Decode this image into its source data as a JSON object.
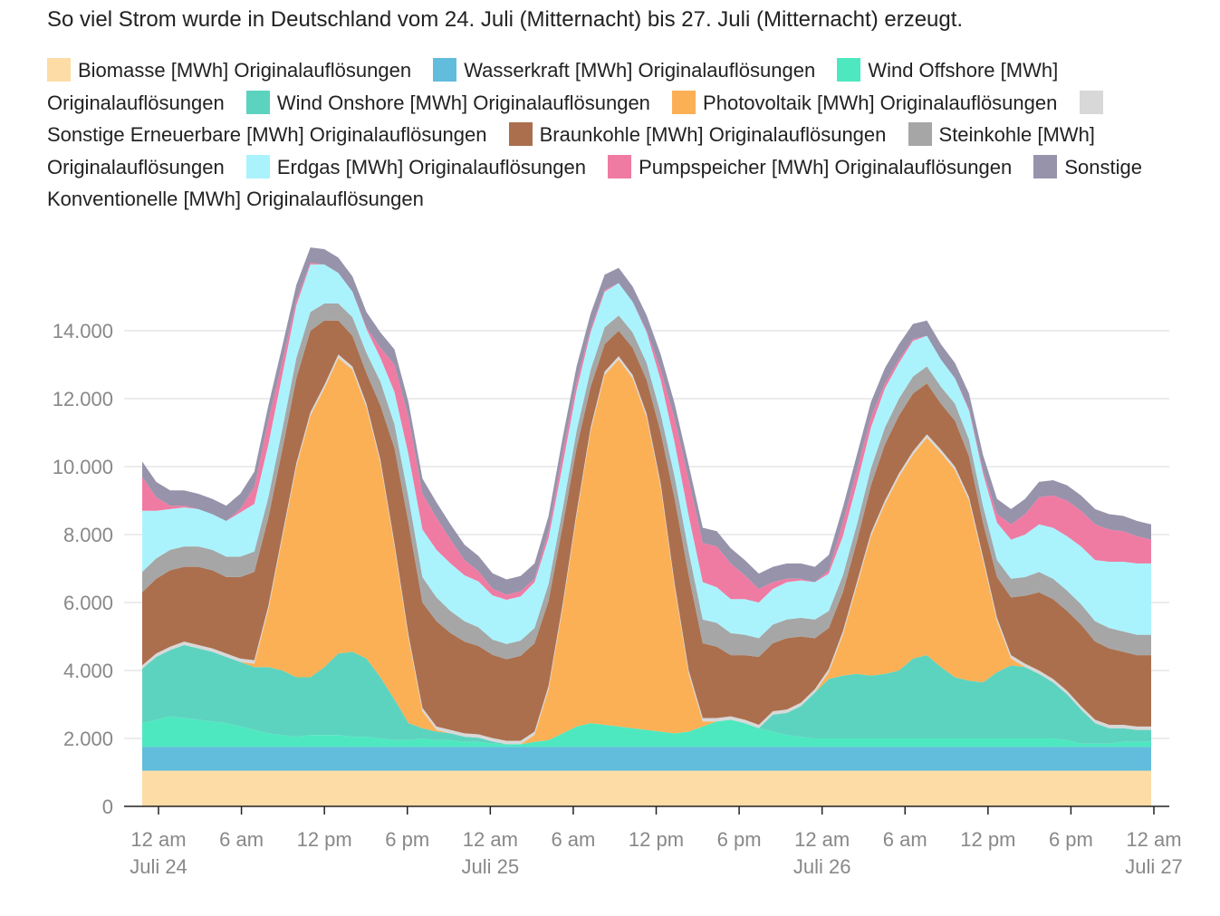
{
  "chart_data": {
    "type": "area",
    "stacked": true,
    "title": "So viel Strom wurde in Deutschland vom 24. Juli (Mitternacht) bis 27. Juli (Mitternacht) erzeugt.",
    "xlabel": "",
    "ylabel": "",
    "x_unit": "hours since Juli 24, 12 am",
    "x": [
      0,
      1,
      2,
      3,
      4,
      5,
      6,
      7,
      8,
      9,
      10,
      11,
      12,
      13,
      14,
      15,
      16,
      17,
      18,
      19,
      20,
      21,
      22,
      23,
      24,
      25,
      26,
      27,
      28,
      29,
      30,
      31,
      32,
      33,
      34,
      35,
      36,
      37,
      38,
      39,
      40,
      41,
      42,
      43,
      44,
      45,
      46,
      47,
      48,
      49,
      50,
      51,
      52,
      53,
      54,
      55,
      56,
      57,
      58,
      59,
      60,
      61,
      62,
      63,
      64,
      65,
      66,
      67,
      68,
      69,
      70,
      71,
      72
    ],
    "ylim": [
      0,
      16000
    ],
    "yticks": [
      0,
      2000,
      4000,
      6000,
      8000,
      10000,
      12000,
      14000
    ],
    "ytick_labels": [
      "0",
      "2.000",
      "4.000",
      "6.000",
      "8.000",
      "10.000",
      "12.000",
      "14.000"
    ],
    "xticks": [
      0,
      6,
      12,
      18,
      24,
      30,
      36,
      42,
      48,
      54,
      60,
      66,
      72
    ],
    "xtick_labels": [
      {
        "time": "12 am",
        "date": "Juli 24"
      },
      {
        "time": "6 am",
        "date": ""
      },
      {
        "time": "12 pm",
        "date": ""
      },
      {
        "time": "6 pm",
        "date": ""
      },
      {
        "time": "12 am",
        "date": "Juli 25"
      },
      {
        "time": "6 am",
        "date": ""
      },
      {
        "time": "12 pm",
        "date": ""
      },
      {
        "time": "6 pm",
        "date": ""
      },
      {
        "time": "12 am",
        "date": "Juli 26"
      },
      {
        "time": "6 am",
        "date": ""
      },
      {
        "time": "12 pm",
        "date": ""
      },
      {
        "time": "6 pm",
        "date": ""
      },
      {
        "time": "12 am",
        "date": "Juli 27"
      }
    ],
    "legend_position": "top",
    "series": [
      {
        "name": "Biomasse [MWh] Originalauflösungen",
        "color": "#fddca6",
        "values": [
          1050,
          1050,
          1050,
          1050,
          1050,
          1050,
          1050,
          1050,
          1050,
          1050,
          1050,
          1050,
          1050,
          1050,
          1050,
          1050,
          1050,
          1050,
          1050,
          1050,
          1050,
          1050,
          1050,
          1050,
          1050,
          1050,
          1050,
          1050,
          1050,
          1050,
          1050,
          1050,
          1050,
          1050,
          1050,
          1050,
          1050,
          1050,
          1050,
          1050,
          1050,
          1050,
          1050,
          1050,
          1050,
          1050,
          1050,
          1050,
          1050,
          1050,
          1050,
          1050,
          1050,
          1050,
          1050,
          1050,
          1050,
          1050,
          1050,
          1050,
          1050,
          1050,
          1050,
          1050,
          1050,
          1050,
          1050,
          1050,
          1050,
          1050,
          1050,
          1050,
          1050
        ]
      },
      {
        "name": "Wasserkraft [MWh] Originalauflösungen",
        "color": "#62bcdc",
        "values": [
          700,
          700,
          700,
          700,
          700,
          700,
          700,
          700,
          700,
          700,
          700,
          700,
          700,
          700,
          700,
          700,
          700,
          700,
          700,
          700,
          700,
          700,
          700,
          700,
          700,
          700,
          700,
          700,
          700,
          700,
          700,
          700,
          700,
          700,
          700,
          700,
          700,
          700,
          700,
          700,
          700,
          700,
          700,
          700,
          700,
          700,
          700,
          700,
          700,
          700,
          700,
          700,
          700,
          700,
          700,
          700,
          700,
          700,
          700,
          700,
          700,
          700,
          700,
          700,
          700,
          700,
          700,
          700,
          700,
          700,
          700,
          700,
          700
        ]
      },
      {
        "name": "Wind Offshore [MWh] Originalauflösungen",
        "color": "#4ee8c0",
        "values": [
          700,
          800,
          900,
          850,
          800,
          750,
          700,
          600,
          500,
          400,
          350,
          300,
          350,
          350,
          350,
          300,
          300,
          250,
          200,
          200,
          250,
          200,
          200,
          150,
          150,
          100,
          80,
          80,
          150,
          200,
          400,
          600,
          700,
          650,
          600,
          550,
          500,
          450,
          400,
          450,
          600,
          750,
          800,
          700,
          550,
          450,
          350,
          300,
          250,
          250,
          250,
          250,
          250,
          250,
          250,
          250,
          250,
          250,
          250,
          250,
          250,
          250,
          250,
          250,
          250,
          250,
          200,
          100,
          100,
          100,
          150,
          150,
          150
        ]
      },
      {
        "name": "Wind Onshore [MWh] Originalauflösungen",
        "color": "#5cd3bf",
        "values": [
          1600,
          1850,
          1950,
          2150,
          2100,
          2050,
          1950,
          1900,
          1850,
          1950,
          1900,
          1750,
          1700,
          2000,
          2400,
          2500,
          2300,
          1800,
          1200,
          500,
          300,
          250,
          200,
          150,
          120,
          60,
          0,
          0,
          0,
          0,
          0,
          0,
          0,
          0,
          0,
          0,
          0,
          0,
          0,
          0,
          0,
          0,
          0,
          0,
          0,
          500,
          650,
          900,
          1350,
          1750,
          1850,
          1900,
          1850,
          1900,
          2000,
          2350,
          2450,
          2100,
          1800,
          1700,
          1650,
          1950,
          2150,
          2100,
          1900,
          1650,
          1350,
          1000,
          600,
          450,
          400,
          350,
          350
        ]
      },
      {
        "name": "Photovoltaik [MWh] Originalauflösungen",
        "color": "#fbb056",
        "values": [
          0,
          0,
          0,
          0,
          0,
          0,
          0,
          0,
          100,
          1700,
          3900,
          6200,
          7700,
          8200,
          8700,
          8300,
          7400,
          6300,
          4500,
          2500,
          500,
          50,
          0,
          0,
          0,
          0,
          0,
          0,
          200,
          1500,
          3700,
          6200,
          8600,
          10300,
          10800,
          10300,
          9200,
          7200,
          4300,
          1700,
          150,
          0,
          0,
          0,
          0,
          0,
          0,
          0,
          0,
          200,
          1200,
          2600,
          4100,
          5000,
          5700,
          6000,
          6400,
          6300,
          6100,
          5300,
          3600,
          1500,
          200,
          0,
          0,
          0,
          0,
          0,
          0,
          0,
          0,
          0,
          0
        ]
      },
      {
        "name": "Sonstige Erneuerbare [MWh] Originalauflösungen",
        "color": "#d8d8d8",
        "values": [
          100,
          100,
          100,
          100,
          100,
          100,
          100,
          100,
          100,
          100,
          100,
          100,
          100,
          100,
          100,
          100,
          100,
          100,
          100,
          100,
          100,
          100,
          100,
          100,
          100,
          100,
          100,
          100,
          100,
          100,
          100,
          100,
          100,
          100,
          100,
          100,
          100,
          100,
          100,
          100,
          100,
          100,
          100,
          100,
          100,
          100,
          100,
          100,
          100,
          100,
          100,
          100,
          100,
          100,
          100,
          100,
          100,
          100,
          100,
          100,
          100,
          100,
          100,
          100,
          100,
          100,
          100,
          100,
          100,
          100,
          100,
          100,
          100
        ]
      },
      {
        "name": "Braunkohle [MWh] Originalauflösungen",
        "color": "#ab6f4d",
        "values": [
          2150,
          2200,
          2250,
          2200,
          2300,
          2300,
          2250,
          2400,
          2600,
          2600,
          2500,
          2500,
          2400,
          1900,
          1000,
          900,
          900,
          1600,
          2800,
          3300,
          3100,
          3100,
          2850,
          2700,
          2600,
          2450,
          2400,
          2500,
          2600,
          2500,
          2300,
          1900,
          1200,
          800,
          750,
          800,
          1000,
          1500,
          2500,
          2800,
          2200,
          2100,
          1800,
          1900,
          2000,
          2000,
          2100,
          1950,
          1500,
          1200,
          1150,
          1200,
          1400,
          1650,
          1700,
          1700,
          1500,
          1350,
          1350,
          1200,
          1000,
          1200,
          1700,
          2000,
          2300,
          2350,
          2350,
          2400,
          2300,
          2250,
          2150,
          2100,
          2100
        ]
      },
      {
        "name": "Steinkohle [MWh] Originalauflösungen",
        "color": "#a6a6a6",
        "values": [
          600,
          600,
          600,
          600,
          600,
          600,
          600,
          600,
          600,
          600,
          600,
          600,
          550,
          500,
          500,
          550,
          600,
          700,
          700,
          750,
          750,
          700,
          650,
          600,
          550,
          450,
          450,
          450,
          450,
          500,
          500,
          500,
          500,
          500,
          450,
          450,
          500,
          550,
          650,
          700,
          700,
          700,
          650,
          600,
          550,
          550,
          550,
          550,
          550,
          500,
          500,
          500,
          500,
          500,
          500,
          500,
          500,
          500,
          500,
          500,
          500,
          500,
          550,
          550,
          600,
          600,
          600,
          600,
          600,
          600,
          600,
          600,
          600
        ]
      },
      {
        "name": "Erdgas [MWh] Originalauflösungen",
        "color": "#aaf3fd",
        "values": [
          1800,
          1400,
          1200,
          1150,
          1100,
          1050,
          1050,
          1300,
          1400,
          1550,
          1600,
          1550,
          1400,
          1150,
          900,
          750,
          700,
          700,
          950,
          1250,
          1400,
          1400,
          1400,
          1350,
          1350,
          1300,
          1300,
          1300,
          1350,
          1350,
          1300,
          1200,
          1100,
          1050,
          950,
          900,
          900,
          1000,
          1000,
          1050,
          1100,
          1050,
          1000,
          1050,
          1050,
          1050,
          1100,
          1100,
          1100,
          1100,
          1150,
          1200,
          1200,
          1150,
          1050,
          1050,
          900,
          800,
          750,
          850,
          950,
          1100,
          1150,
          1250,
          1400,
          1500,
          1600,
          1700,
          1800,
          1950,
          2050,
          2100,
          2100
        ]
      },
      {
        "name": "Pumpspeicher [MWh] Originalauflösungen",
        "color": "#ef7ba3",
        "values": [
          1000,
          400,
          100,
          50,
          0,
          0,
          0,
          100,
          500,
          700,
          400,
          150,
          50,
          0,
          0,
          0,
          50,
          300,
          800,
          1100,
          1050,
          950,
          700,
          450,
          300,
          200,
          150,
          150,
          100,
          200,
          350,
          250,
          100,
          50,
          0,
          0,
          50,
          300,
          700,
          1050,
          1150,
          1200,
          1050,
          700,
          400,
          200,
          100,
          50,
          0,
          100,
          400,
          400,
          300,
          150,
          100,
          50,
          0,
          0,
          0,
          50,
          100,
          250,
          450,
          600,
          800,
          950,
          1050,
          1050,
          1050,
          950,
          900,
          800,
          700
        ]
      },
      {
        "name": "Sonstige Konventionelle [MWh] Originalauflösungen",
        "color": "#9693ab",
        "values": [
          450,
          450,
          450,
          450,
          450,
          450,
          450,
          450,
          450,
          450,
          450,
          450,
          450,
          450,
          450,
          450,
          450,
          450,
          450,
          450,
          450,
          450,
          450,
          450,
          450,
          450,
          450,
          450,
          450,
          450,
          450,
          450,
          450,
          450,
          450,
          450,
          450,
          450,
          450,
          450,
          450,
          450,
          450,
          450,
          450,
          450,
          450,
          450,
          450,
          450,
          450,
          450,
          450,
          450,
          450,
          450,
          450,
          450,
          450,
          450,
          450,
          450,
          450,
          450,
          450,
          450,
          450,
          450,
          450,
          450,
          450,
          450,
          450
        ]
      }
    ]
  }
}
